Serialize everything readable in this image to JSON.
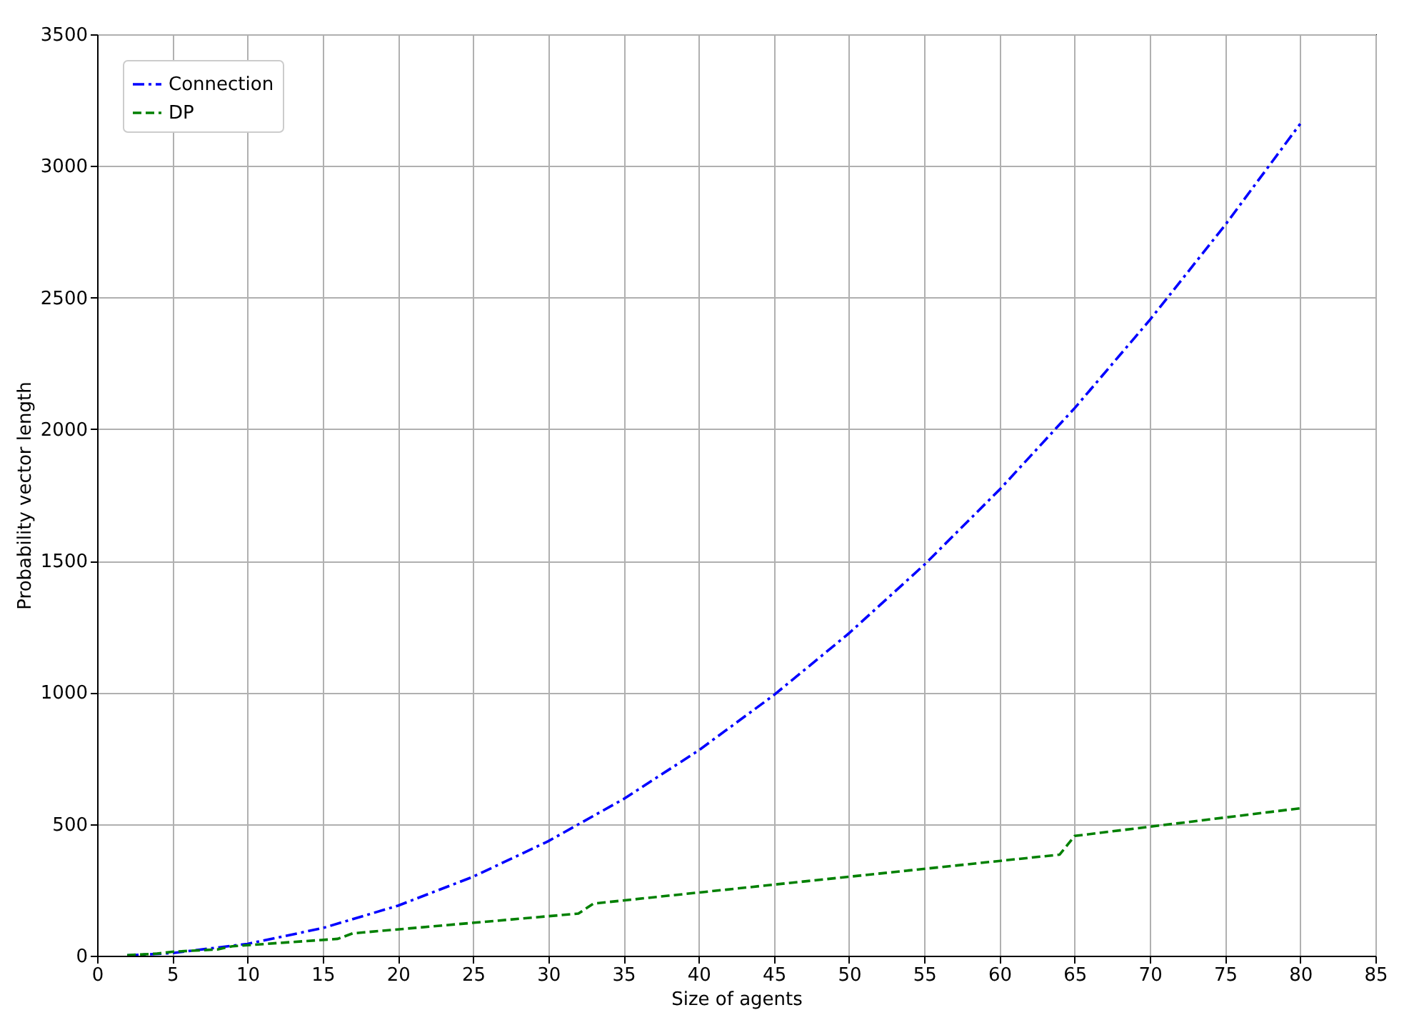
{
  "chart_data": {
    "type": "line",
    "xlabel": "Size of agents",
    "ylabel": "Probability vector length",
    "xlim": [
      0,
      85
    ],
    "xticks": [
      0,
      5,
      10,
      15,
      20,
      25,
      30,
      35,
      40,
      45,
      50,
      55,
      60,
      65,
      70,
      75,
      80,
      85
    ],
    "ylim": [
      0,
      3500
    ],
    "yticks": [
      0,
      500,
      1000,
      1500,
      2000,
      2500,
      3000,
      3500
    ],
    "grid": true,
    "legend": "top left",
    "marker": "none",
    "series": [
      {
        "name": "Connection",
        "color": "#0000ff",
        "line_style": "dashdot",
        "x": [
          2,
          5,
          10,
          15,
          20,
          25,
          30,
          35,
          40,
          45,
          50,
          55,
          60,
          65,
          70,
          75,
          80
        ],
        "values": [
          1,
          10,
          45,
          105,
          190,
          300,
          435,
          595,
          780,
          990,
          1225,
          1485,
          1770,
          2080,
          2415,
          2775,
          3160
        ]
      },
      {
        "name": "DP",
        "color": "#008000",
        "line_style": "dashed",
        "x": [
          2,
          4,
          5,
          8,
          9,
          16,
          17,
          32,
          33,
          64,
          65,
          80
        ],
        "values": [
          2,
          8,
          15,
          24,
          36,
          64,
          85,
          160,
          198,
          384,
          455,
          560
        ]
      }
    ]
  }
}
